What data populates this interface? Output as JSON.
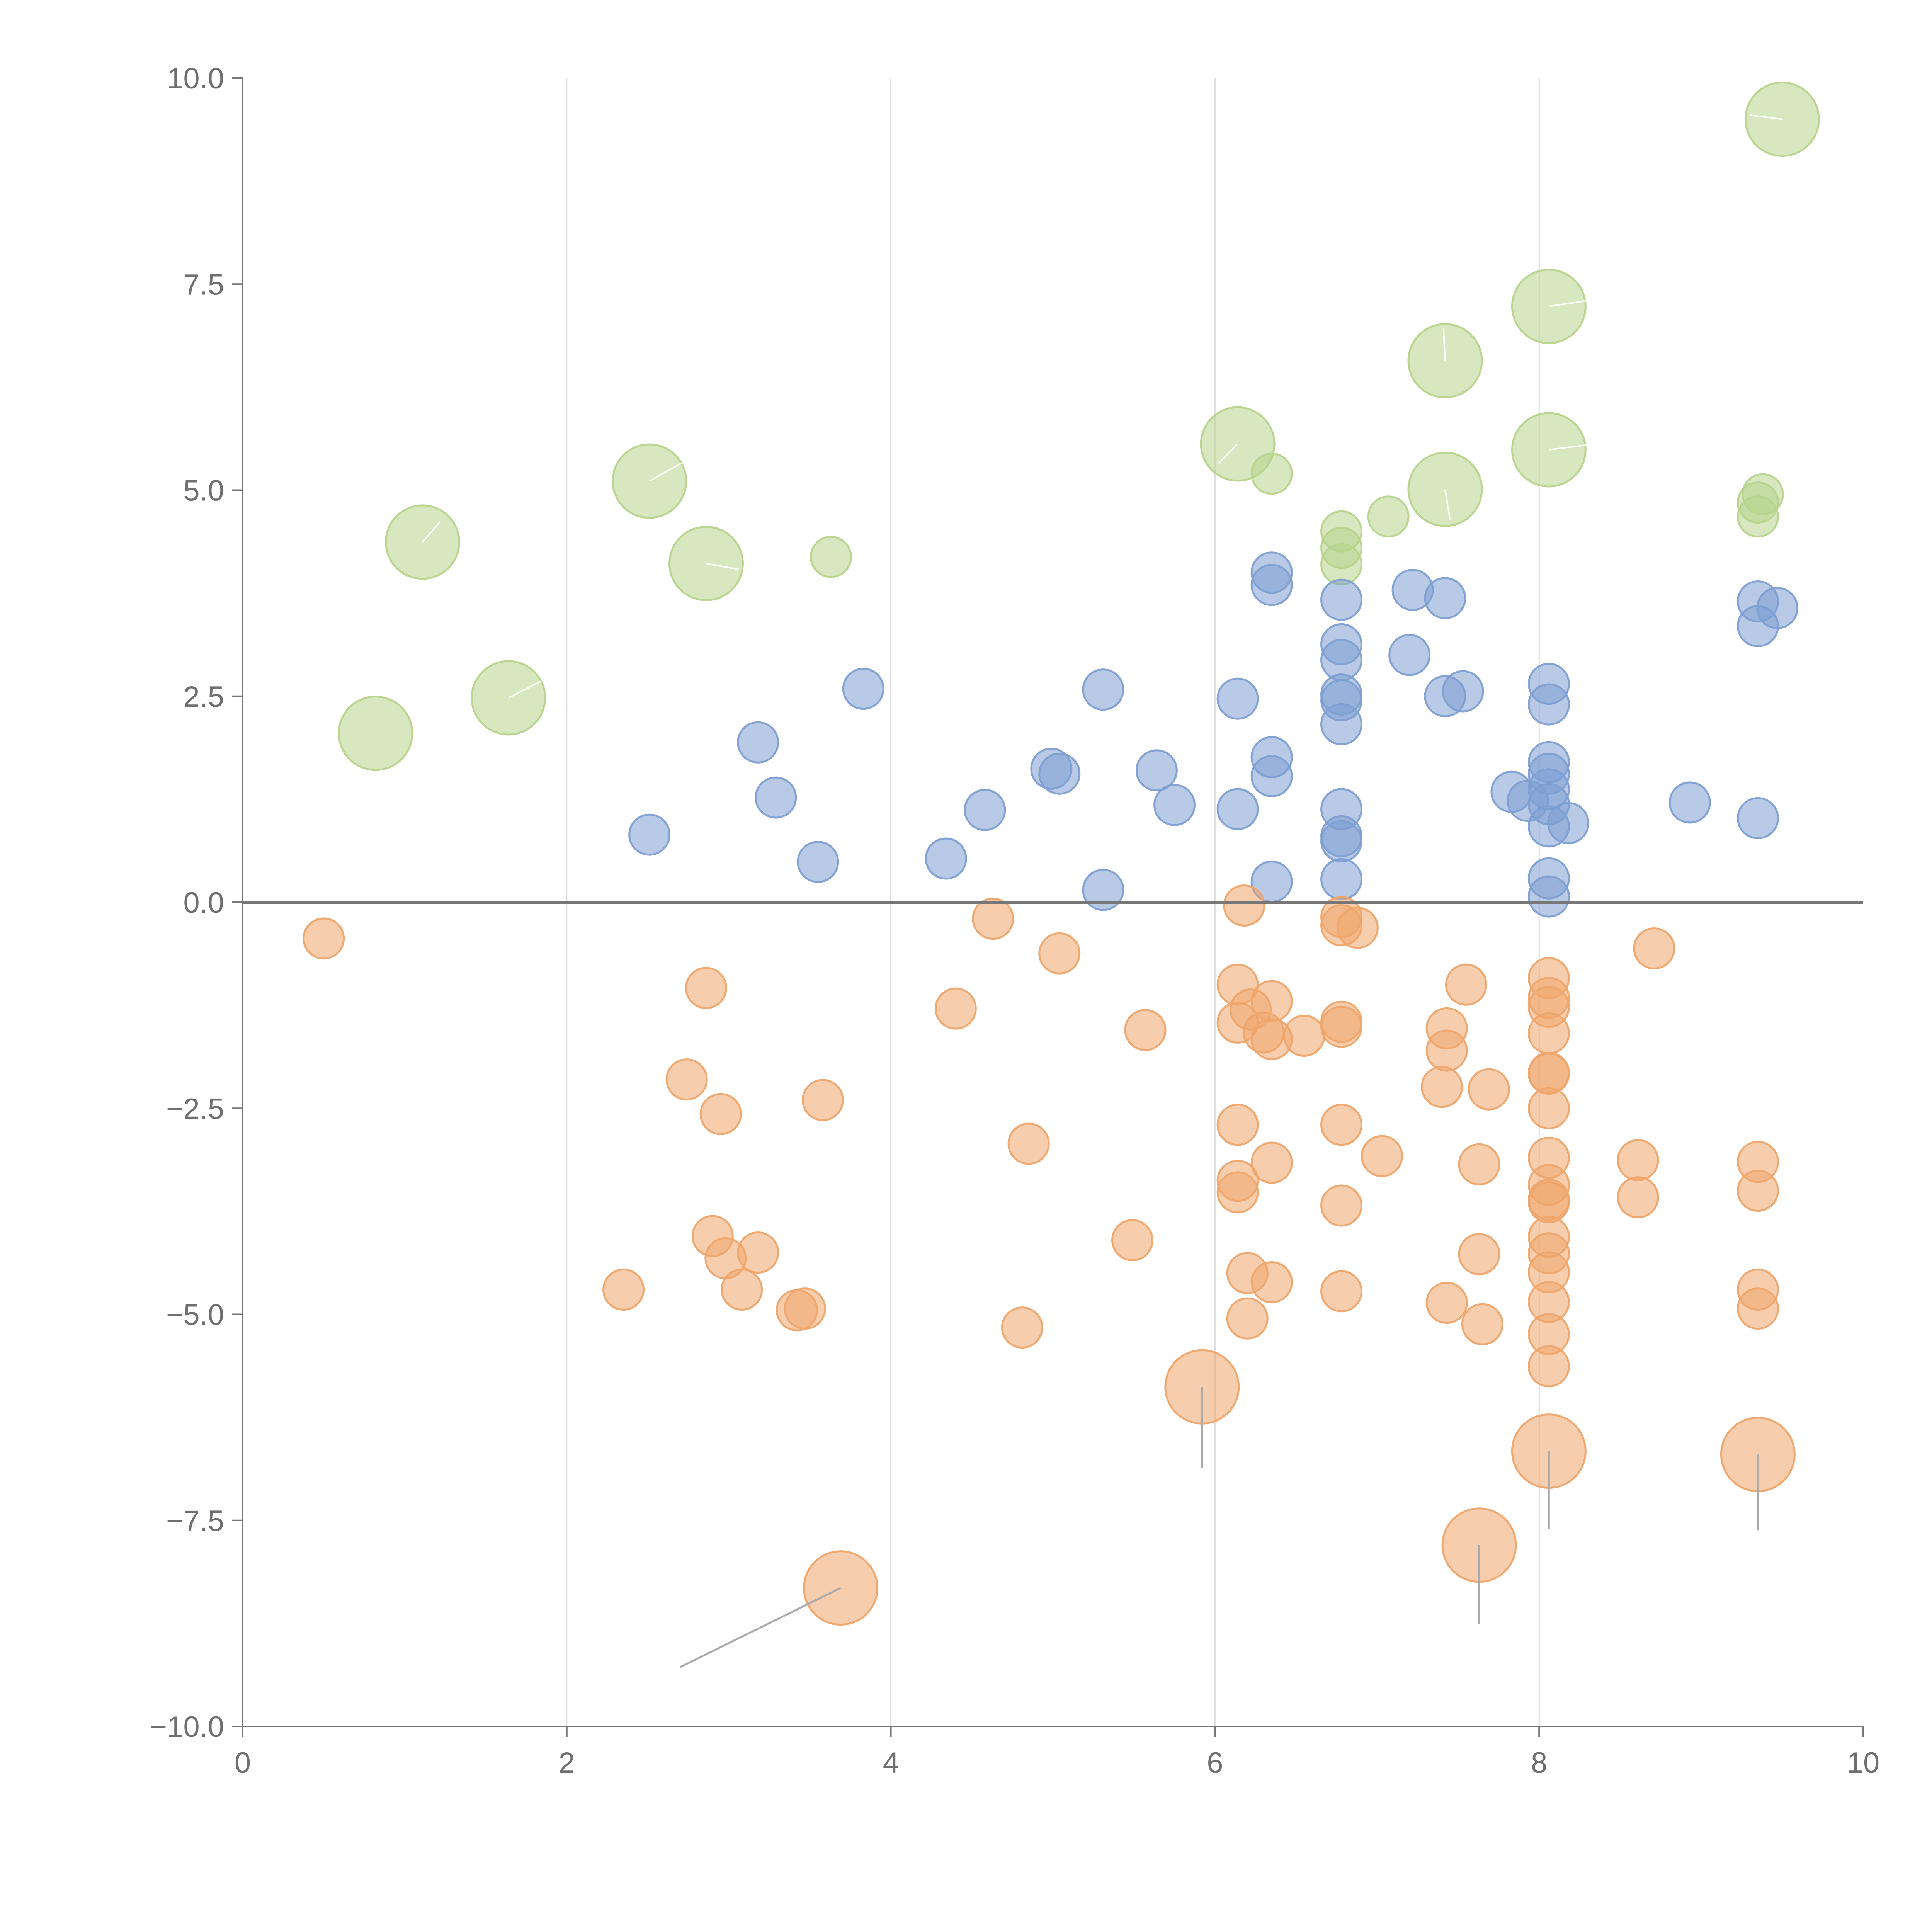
{
  "chart_data": {
    "type": "scatter",
    "title": "",
    "xlabel": "",
    "ylabel": "",
    "xlim": [
      0,
      10
    ],
    "ylim": [
      -10,
      10
    ],
    "grid": "vertical at x ticks",
    "legend": "none",
    "x_ticks": [
      0,
      2,
      4,
      6,
      8,
      10
    ],
    "y_ticks": [
      10,
      7.5,
      5,
      2.5,
      0,
      -2.5,
      -5,
      -7.5,
      -10
    ],
    "x_tick_labels": [
      "0",
      "2",
      "4",
      "6",
      "8",
      "10"
    ],
    "y_tick_labels": [
      "10.0",
      "7.5",
      "5.0",
      "2.5",
      "0.0",
      "−2.5",
      "−5.0",
      "−7.5",
      "−10.0"
    ],
    "reference_line_y": 0,
    "colors": {
      "green": "#b7d48c",
      "blue": "#7e9fd2",
      "orange": "#eea56c",
      "axis": "#777777",
      "grid": "#dddddd"
    },
    "series": [
      {
        "name": "green",
        "color": "#b7d48c",
        "points": [
          [
            0.82,
            2.05,
            3
          ],
          [
            1.11,
            4.37,
            3
          ],
          [
            1.64,
            2.48,
            3
          ],
          [
            2.51,
            5.11,
            3
          ],
          [
            2.86,
            4.11,
            3
          ],
          [
            3.63,
            4.19,
            1
          ],
          [
            6.14,
            5.56,
            3
          ],
          [
            6.35,
            5.2,
            1
          ],
          [
            6.78,
            4.5,
            1
          ],
          [
            6.78,
            4.3,
            1
          ],
          [
            6.78,
            4.1,
            1
          ],
          [
            7.07,
            4.68,
            1
          ],
          [
            7.42,
            6.57,
            3
          ],
          [
            7.42,
            5.01,
            3
          ],
          [
            8.06,
            7.23,
            3
          ],
          [
            8.06,
            5.49,
            3
          ],
          [
            9.35,
            4.68,
            1
          ],
          [
            9.35,
            4.85,
            1
          ],
          [
            9.38,
            4.95,
            1
          ],
          [
            9.5,
            9.5,
            3
          ]
        ]
      },
      {
        "name": "blue",
        "color": "#7e9fd2",
        "points": [
          [
            2.51,
            0.82,
            1
          ],
          [
            3.18,
            1.94,
            1
          ],
          [
            3.29,
            1.27,
            1
          ],
          [
            3.55,
            0.49,
            1
          ],
          [
            3.83,
            2.59,
            1
          ],
          [
            4.34,
            0.53,
            1
          ],
          [
            4.58,
            1.12,
            1
          ],
          [
            4.99,
            1.62,
            1
          ],
          [
            5.04,
            1.56,
            1
          ],
          [
            5.31,
            2.58,
            1
          ],
          [
            5.31,
            0.15,
            1
          ],
          [
            5.64,
            1.6,
            1
          ],
          [
            5.75,
            1.18,
            1
          ],
          [
            6.14,
            2.47,
            1
          ],
          [
            6.14,
            1.13,
            1
          ],
          [
            6.35,
            4.0,
            1
          ],
          [
            6.35,
            3.85,
            1
          ],
          [
            6.35,
            1.76,
            1
          ],
          [
            6.35,
            1.53,
            1
          ],
          [
            6.35,
            0.25,
            1
          ],
          [
            6.78,
            3.67,
            1
          ],
          [
            6.78,
            3.13,
            1
          ],
          [
            6.78,
            2.94,
            1
          ],
          [
            6.78,
            2.52,
            1
          ],
          [
            6.78,
            2.45,
            1
          ],
          [
            6.78,
            2.16,
            1
          ],
          [
            6.78,
            1.13,
            1
          ],
          [
            6.78,
            0.8,
            1
          ],
          [
            6.78,
            0.74,
            1
          ],
          [
            6.78,
            0.28,
            1
          ],
          [
            7.2,
            3.0,
            1
          ],
          [
            7.22,
            3.79,
            1
          ],
          [
            7.42,
            3.69,
            1
          ],
          [
            7.42,
            2.5,
            1
          ],
          [
            7.53,
            2.56,
            1
          ],
          [
            7.83,
            1.34,
            1
          ],
          [
            7.93,
            1.23,
            1
          ],
          [
            8.06,
            2.65,
            1
          ],
          [
            8.06,
            2.4,
            1
          ],
          [
            8.06,
            1.7,
            1
          ],
          [
            8.06,
            1.56,
            1
          ],
          [
            8.06,
            1.37,
            1
          ],
          [
            8.06,
            1.19,
            1
          ],
          [
            8.06,
            0.92,
            1
          ],
          [
            8.06,
            0.29,
            1
          ],
          [
            8.06,
            0.07,
            1
          ],
          [
            8.18,
            0.96,
            1
          ],
          [
            8.93,
            1.21,
            1
          ],
          [
            9.35,
            3.65,
            1
          ],
          [
            9.35,
            3.35,
            1
          ],
          [
            9.35,
            1.02,
            1
          ],
          [
            9.47,
            3.57,
            1
          ]
        ]
      },
      {
        "name": "orange",
        "color": "#eea56c",
        "points": [
          [
            0.5,
            -0.44,
            1
          ],
          [
            2.35,
            -4.7,
            1
          ],
          [
            2.74,
            -2.15,
            1
          ],
          [
            2.86,
            -1.04,
            1
          ],
          [
            2.9,
            -4.05,
            1
          ],
          [
            2.95,
            -2.57,
            1
          ],
          [
            2.98,
            -4.32,
            1
          ],
          [
            3.08,
            -4.7,
            1
          ],
          [
            3.18,
            -4.25,
            1
          ],
          [
            3.42,
            -4.95,
            1
          ],
          [
            3.47,
            -4.93,
            1
          ],
          [
            3.58,
            -2.4,
            1
          ],
          [
            3.69,
            -8.32,
            3
          ],
          [
            4.4,
            -1.29,
            1
          ],
          [
            4.63,
            -0.2,
            1
          ],
          [
            4.81,
            -5.16,
            1
          ],
          [
            4.85,
            -2.93,
            1
          ],
          [
            5.04,
            -0.62,
            1
          ],
          [
            5.49,
            -4.1,
            1
          ],
          [
            5.57,
            -1.55,
            1
          ],
          [
            5.92,
            -5.88,
            3
          ],
          [
            6.14,
            -1.0,
            1
          ],
          [
            6.14,
            -1.46,
            1
          ],
          [
            6.14,
            -2.7,
            1
          ],
          [
            6.14,
            -3.38,
            1
          ],
          [
            6.14,
            -3.52,
            1
          ],
          [
            6.18,
            -0.04,
            1
          ],
          [
            6.2,
            -4.5,
            1
          ],
          [
            6.2,
            -5.05,
            1
          ],
          [
            6.22,
            -1.3,
            1
          ],
          [
            6.3,
            -1.58,
            1
          ],
          [
            6.35,
            -1.2,
            1
          ],
          [
            6.35,
            -1.66,
            1
          ],
          [
            6.35,
            -3.16,
            1
          ],
          [
            6.35,
            -4.61,
            1
          ],
          [
            6.55,
            -1.62,
            1
          ],
          [
            6.78,
            -0.18,
            1
          ],
          [
            6.78,
            -0.28,
            1
          ],
          [
            6.78,
            -1.45,
            1
          ],
          [
            6.78,
            -1.51,
            1
          ],
          [
            6.78,
            -2.7,
            1
          ],
          [
            6.78,
            -3.68,
            1
          ],
          [
            6.78,
            -4.72,
            1
          ],
          [
            6.88,
            -0.31,
            1
          ],
          [
            7.03,
            -3.08,
            1
          ],
          [
            7.4,
            -2.24,
            1
          ],
          [
            7.43,
            -1.53,
            1
          ],
          [
            7.43,
            -1.8,
            1
          ],
          [
            7.43,
            -4.86,
            1
          ],
          [
            7.55,
            -1.0,
            1
          ],
          [
            7.63,
            -3.18,
            1
          ],
          [
            7.63,
            -4.27,
            1
          ],
          [
            7.63,
            -7.8,
            3
          ],
          [
            7.65,
            -5.12,
            1
          ],
          [
            7.69,
            -2.27,
            1
          ],
          [
            8.06,
            -0.92,
            1
          ],
          [
            8.06,
            -1.16,
            1
          ],
          [
            8.06,
            -1.27,
            1
          ],
          [
            8.06,
            -1.59,
            1
          ],
          [
            8.06,
            -2.07,
            1
          ],
          [
            8.06,
            -2.08,
            1
          ],
          [
            8.06,
            -2.5,
            1
          ],
          [
            8.06,
            -3.1,
            1
          ],
          [
            8.06,
            -3.43,
            1
          ],
          [
            8.06,
            -3.61,
            1
          ],
          [
            8.06,
            -3.64,
            1
          ],
          [
            8.06,
            -4.06,
            1
          ],
          [
            8.06,
            -4.26,
            1
          ],
          [
            8.06,
            -4.49,
            1
          ],
          [
            8.06,
            -4.85,
            1
          ],
          [
            8.06,
            -5.24,
            1
          ],
          [
            8.06,
            -5.63,
            1
          ],
          [
            8.06,
            -6.66,
            3
          ],
          [
            8.61,
            -3.13,
            1
          ],
          [
            8.61,
            -3.58,
            1
          ],
          [
            8.71,
            -0.56,
            1
          ],
          [
            9.35,
            -3.15,
            1
          ],
          [
            9.35,
            -3.5,
            1
          ],
          [
            9.35,
            -4.7,
            1
          ],
          [
            9.35,
            -4.93,
            1
          ],
          [
            9.35,
            -6.7,
            3
          ]
        ]
      }
    ],
    "leader_lines": [
      {
        "color": "#aaaaaa",
        "from": [
          3.69,
          -8.32
        ],
        "to": [
          2.7,
          -9.28
        ]
      },
      {
        "color": "#aaaaaa",
        "from": [
          5.92,
          -5.88
        ],
        "to": [
          5.92,
          -6.86
        ]
      },
      {
        "color": "#aaaaaa",
        "from": [
          7.63,
          -7.8
        ],
        "to": [
          7.63,
          -8.76
        ]
      },
      {
        "color": "#aaaaaa",
        "from": [
          8.06,
          -6.66
        ],
        "to": [
          8.06,
          -7.6
        ]
      },
      {
        "color": "#aaaaaa",
        "from": [
          9.35,
          -6.7
        ],
        "to": [
          9.35,
          -7.62
        ]
      },
      {
        "color": "#ffffff",
        "from": [
          1.11,
          4.37
        ],
        "to": [
          1.22,
          4.62
        ]
      },
      {
        "color": "#ffffff",
        "from": [
          1.64,
          2.48
        ],
        "to": [
          1.84,
          2.68
        ]
      },
      {
        "color": "#ffffff",
        "from": [
          2.51,
          5.11
        ],
        "to": [
          2.71,
          5.33
        ]
      },
      {
        "color": "#ffffff",
        "from": [
          2.86,
          4.11
        ],
        "to": [
          3.06,
          4.04
        ]
      },
      {
        "color": "#ffffff",
        "from": [
          6.14,
          5.56
        ],
        "to": [
          6.02,
          5.32
        ]
      },
      {
        "color": "#ffffff",
        "from": [
          7.42,
          6.57
        ],
        "to": [
          7.41,
          6.97
        ]
      },
      {
        "color": "#ffffff",
        "from": [
          7.42,
          5.01
        ],
        "to": [
          7.45,
          4.64
        ]
      },
      {
        "color": "#ffffff",
        "from": [
          8.06,
          7.23
        ],
        "to": [
          8.3,
          7.3
        ]
      },
      {
        "color": "#ffffff",
        "from": [
          8.06,
          5.49
        ],
        "to": [
          8.3,
          5.55
        ]
      },
      {
        "color": "#ffffff",
        "from": [
          9.5,
          9.5
        ],
        "to": [
          9.3,
          9.55
        ]
      }
    ]
  }
}
